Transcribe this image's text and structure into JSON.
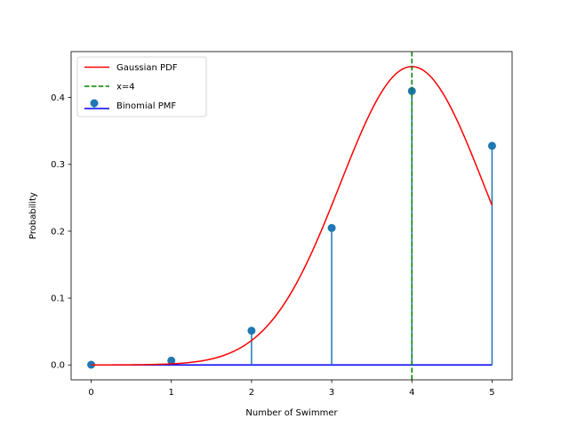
{
  "chart_data": {
    "type": "line",
    "xlabel": "Number of Swimmer",
    "ylabel": "Probability",
    "xlim": [
      -0.25,
      5.25
    ],
    "ylim": [
      -0.0223,
      0.4686
    ],
    "xticks": [
      0,
      1,
      2,
      3,
      4,
      5
    ],
    "xtick_labels": [
      "0",
      "1",
      "2",
      "3",
      "4",
      "5"
    ],
    "yticks": [
      0.0,
      0.1,
      0.2,
      0.3,
      0.4
    ],
    "ytick_labels": [
      "0.0",
      "0.1",
      "0.2",
      "0.3",
      "0.4"
    ],
    "grid": false,
    "legend_position": "top-left",
    "series": [
      {
        "name": "Gaussian PDF",
        "kind": "line",
        "color": "#ff0000",
        "mean": 4.0,
        "std": 0.894,
        "x_range": [
          0,
          5
        ]
      },
      {
        "name": "x=4",
        "kind": "vline",
        "color": "#008000",
        "x": 4
      },
      {
        "name": "Binomial PMF",
        "kind": "stem",
        "marker_color": "#1f77b4",
        "baseline_color": "#0000ff",
        "x": [
          0,
          1,
          2,
          3,
          4,
          5
        ],
        "values": [
          0.00032,
          0.0064,
          0.0512,
          0.2048,
          0.4096,
          0.32768
        ]
      }
    ]
  }
}
